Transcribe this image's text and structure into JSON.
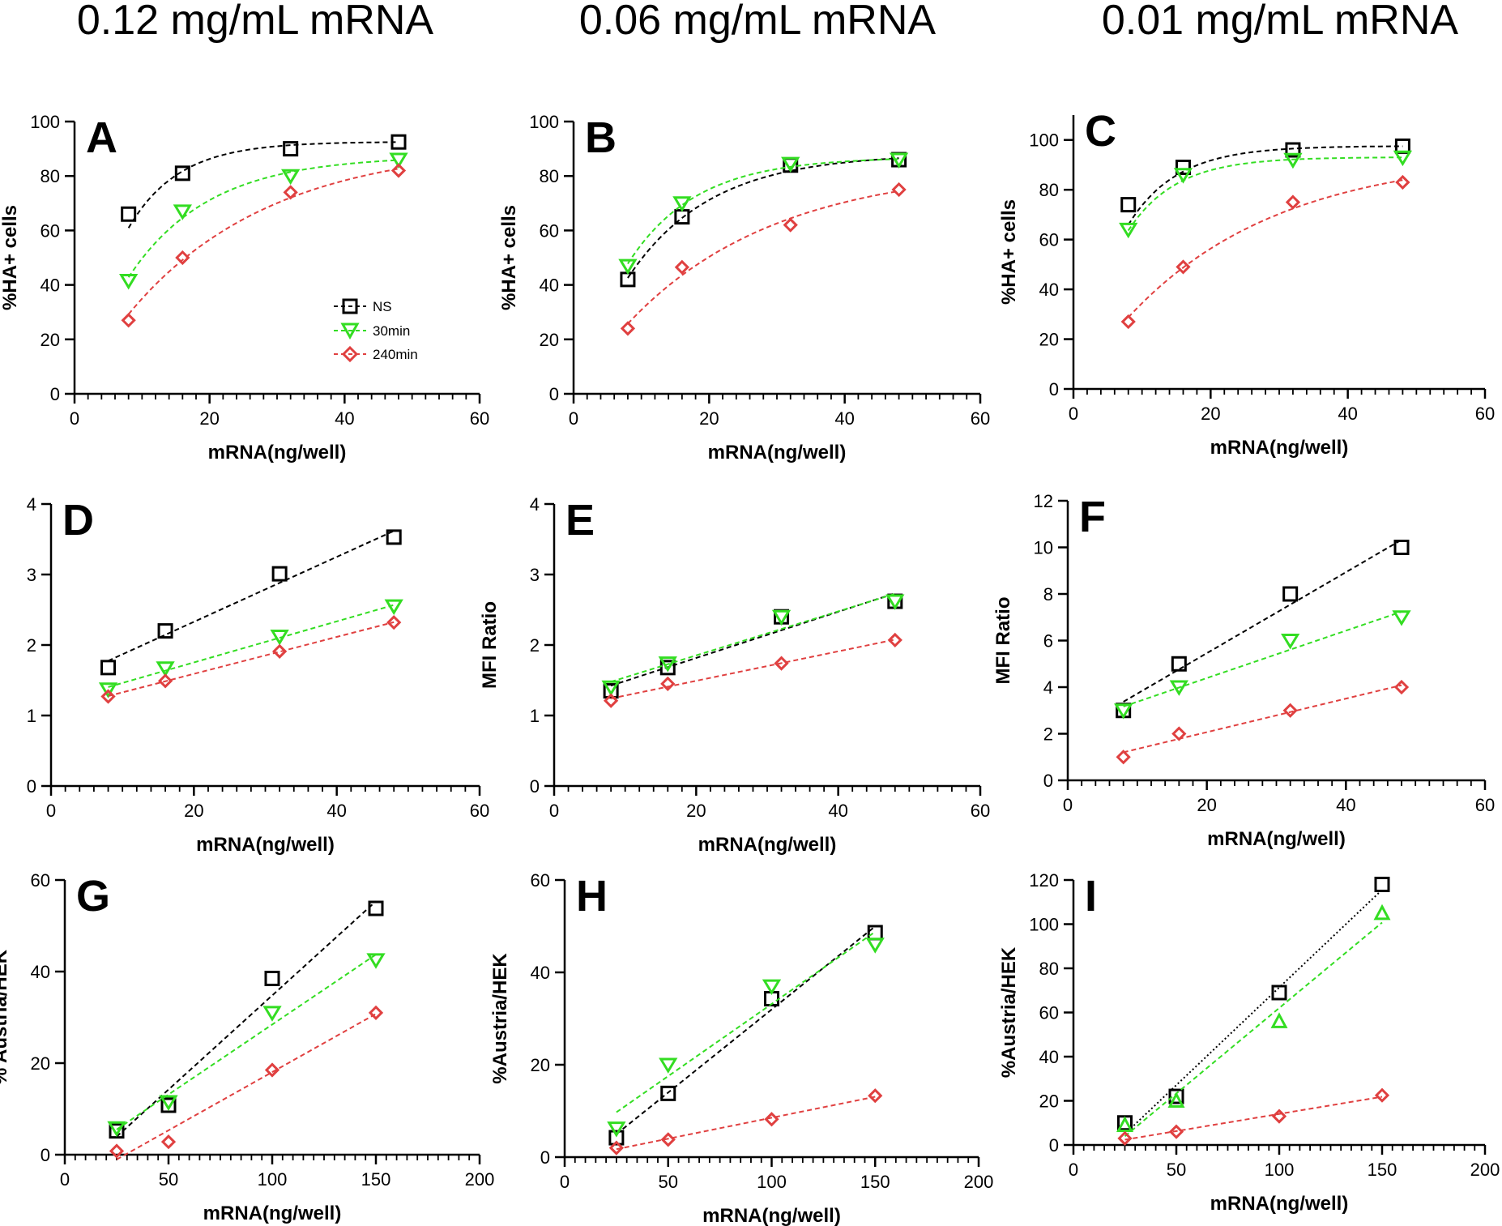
{
  "column_titles": [
    "0.12 mg/mL mRNA",
    "0.06 mg/mL mRNA",
    "0.01 mg/mL mRNA"
  ],
  "colors": {
    "NS": "#000000",
    "30min": "#33dd22",
    "240min": "#e04040",
    "axis": "#000000"
  },
  "legend": [
    {
      "name": "NS",
      "marker": "square",
      "color": "#000000"
    },
    {
      "name": "30min",
      "marker": "triangle-down",
      "color": "#33dd22"
    },
    {
      "name": "240min",
      "marker": "diamond",
      "color": "#e04040"
    }
  ],
  "chart_data": [
    {
      "id": "A",
      "type": "scatter",
      "fit": "saturation",
      "xlabel": "mRNA(ng/well)",
      "ylabel": "%HA+ cells",
      "xlim": [
        0,
        60
      ],
      "ylim": [
        0,
        100
      ],
      "xticks": [
        0,
        20,
        40,
        60
      ],
      "yticks": [
        0,
        20,
        40,
        60,
        80,
        100
      ],
      "x": [
        8,
        16,
        32,
        48
      ],
      "series": [
        {
          "name": "NS",
          "values": [
            66,
            81,
            90,
            92.5
          ]
        },
        {
          "name": "30min",
          "values": [
            41.5,
            67,
            80,
            86
          ]
        },
        {
          "name": "240min",
          "values": [
            27,
            50,
            74,
            82
          ]
        }
      ]
    },
    {
      "id": "B",
      "type": "scatter",
      "fit": "saturation",
      "xlabel": "mRNA(ng/well)",
      "ylabel": "%HA+ cells",
      "xlim": [
        0,
        60
      ],
      "ylim": [
        0,
        100
      ],
      "xticks": [
        0,
        20,
        40,
        60
      ],
      "yticks": [
        0,
        20,
        40,
        60,
        80,
        100
      ],
      "x": [
        8,
        16,
        32,
        48
      ],
      "series": [
        {
          "name": "NS",
          "values": [
            42,
            65,
            84,
            86
          ]
        },
        {
          "name": "30min",
          "values": [
            47,
            70,
            84.5,
            86
          ]
        },
        {
          "name": "240min",
          "values": [
            24,
            46.5,
            62,
            75
          ]
        }
      ]
    },
    {
      "id": "C",
      "type": "scatter",
      "fit": "saturation",
      "xlabel": "mRNA(ng/well)",
      "ylabel": "%HA+ cells",
      "xlim": [
        0,
        60
      ],
      "ylim": [
        0,
        110
      ],
      "xticks": [
        0,
        20,
        40,
        60
      ],
      "yticks": [
        0,
        20,
        40,
        60,
        80,
        100
      ],
      "x": [
        8,
        16,
        32,
        48
      ],
      "series": [
        {
          "name": "NS",
          "values": [
            74,
            89,
            96,
            97.5
          ]
        },
        {
          "name": "30min",
          "values": [
            64,
            86,
            92,
            93
          ]
        },
        {
          "name": "240min",
          "values": [
            27,
            49,
            75,
            83
          ]
        }
      ]
    },
    {
      "id": "D",
      "type": "scatter",
      "fit": "linear",
      "xlabel": "mRNA(ng/well)",
      "ylabel": "MFI Ratio",
      "xlim": [
        0,
        60
      ],
      "ylim": [
        0,
        4
      ],
      "xticks": [
        0,
        20,
        40,
        60
      ],
      "yticks": [
        0,
        1,
        2,
        3,
        4
      ],
      "x": [
        8,
        16,
        32,
        48
      ],
      "series": [
        {
          "name": "NS",
          "values": [
            1.68,
            2.2,
            3.01,
            3.53
          ]
        },
        {
          "name": "30min",
          "values": [
            1.37,
            1.67,
            2.12,
            2.55
          ]
        },
        {
          "name": "240min",
          "values": [
            1.27,
            1.49,
            1.91,
            2.32
          ]
        }
      ]
    },
    {
      "id": "E",
      "type": "scatter",
      "fit": "linear",
      "xlabel": "mRNA(ng/well)",
      "ylabel": "MFI Ratio",
      "xlim": [
        0,
        60
      ],
      "ylim": [
        0,
        4
      ],
      "xticks": [
        0,
        20,
        40,
        60
      ],
      "yticks": [
        0,
        1,
        2,
        3,
        4
      ],
      "x": [
        8,
        16,
        32,
        48
      ],
      "series": [
        {
          "name": "NS",
          "values": [
            1.35,
            1.68,
            2.4,
            2.62
          ]
        },
        {
          "name": "30min",
          "values": [
            1.4,
            1.74,
            2.4,
            2.62
          ]
        },
        {
          "name": "240min",
          "values": [
            1.21,
            1.45,
            1.74,
            2.07
          ]
        }
      ]
    },
    {
      "id": "F",
      "type": "scatter",
      "fit": "linear",
      "xlabel": "mRNA(ng/well)",
      "ylabel": "MFI Ratio",
      "xlim": [
        0,
        60
      ],
      "ylim": [
        0,
        12
      ],
      "xticks": [
        0,
        20,
        40,
        60
      ],
      "yticks": [
        0,
        2,
        4,
        6,
        8,
        10,
        12
      ],
      "x": [
        8,
        16,
        32,
        48
      ],
      "series": [
        {
          "name": "NS",
          "values": [
            3,
            5,
            8,
            10
          ]
        },
        {
          "name": "30min",
          "values": [
            3,
            4,
            6,
            7
          ]
        },
        {
          "name": "240min",
          "values": [
            1,
            2,
            3,
            4
          ]
        }
      ]
    },
    {
      "id": "G",
      "type": "scatter",
      "fit": "linear",
      "xlabel": "mRNA(ng/well)",
      "ylabel": "% Austria/HEK",
      "xlim": [
        0,
        200
      ],
      "ylim": [
        0,
        60
      ],
      "xticks": [
        0,
        50,
        100,
        150,
        200
      ],
      "yticks": [
        0,
        20,
        40,
        60
      ],
      "x": [
        25,
        50,
        100,
        150
      ],
      "series": [
        {
          "name": "NS",
          "values": [
            5.2,
            10.8,
            38.5,
            53.8
          ]
        },
        {
          "name": "30min",
          "values": [
            5.8,
            11.5,
            31,
            42.5
          ]
        },
        {
          "name": "240min",
          "values": [
            0.8,
            2.8,
            18.5,
            31
          ]
        }
      ]
    },
    {
      "id": "H",
      "type": "scatter",
      "fit": "linear",
      "xlabel": "mRNA(ng/well)",
      "ylabel": "%Austria/HEK",
      "xlim": [
        0,
        200
      ],
      "ylim": [
        0,
        60
      ],
      "xticks": [
        0,
        50,
        100,
        150,
        200
      ],
      "yticks": [
        0,
        20,
        40,
        60
      ],
      "x": [
        25,
        50,
        100,
        150
      ],
      "series": [
        {
          "name": "NS",
          "values": [
            4.2,
            13.8,
            34.3,
            48.6
          ]
        },
        {
          "name": "30min",
          "values": [
            6.2,
            20,
            37,
            46
          ]
        },
        {
          "name": "240min",
          "values": [
            2,
            3.8,
            8.2,
            13.3
          ]
        }
      ]
    },
    {
      "id": "I",
      "type": "scatter",
      "fit": "linear",
      "xlabel": "mRNA(ng/well)",
      "ylabel": "%Austria/HEK",
      "xlim": [
        0,
        200
      ],
      "ylim": [
        0,
        120
      ],
      "xticks": [
        0,
        50,
        100,
        150,
        200
      ],
      "yticks": [
        0,
        20,
        40,
        60,
        80,
        100,
        120
      ],
      "x": [
        25,
        50,
        100,
        150
      ],
      "series": [
        {
          "name": "NS",
          "values": [
            10,
            22,
            69,
            118
          ]
        },
        {
          "name": "30min",
          "values": [
            9,
            20,
            56,
            105
          ]
        },
        {
          "name": "240min",
          "values": [
            3,
            6,
            13,
            22.5
          ]
        }
      ]
    }
  ]
}
